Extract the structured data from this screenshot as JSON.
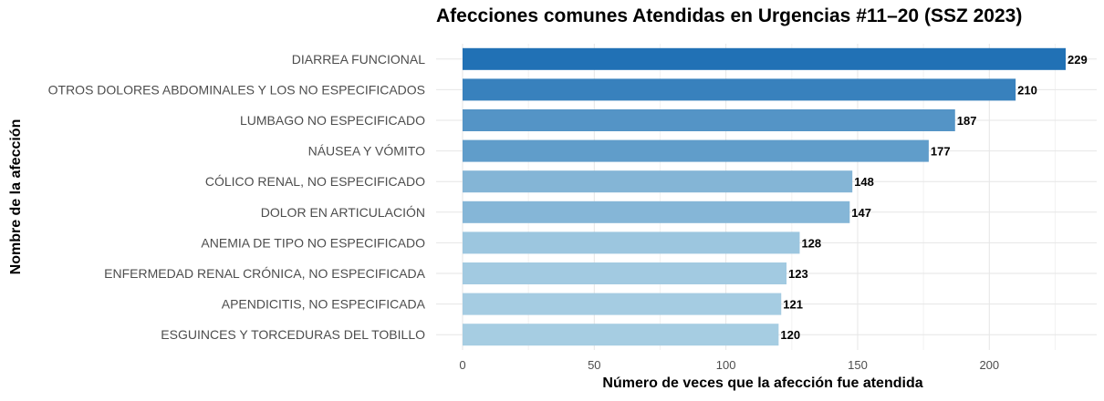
{
  "chart_data": {
    "type": "bar",
    "orientation": "horizontal",
    "title": "Afecciones comunes Atendidas en Urgencias #11–20 (SSZ 2023)",
    "xlabel": "Número de veces que la afección fue atendida",
    "ylabel": "Nombre de la afección",
    "categories": [
      "DIARREA FUNCIONAL",
      "OTROS DOLORES ABDOMINALES Y LOS NO ESPECIFICADOS",
      "LUMBAGO NO ESPECIFICADO",
      "NÁUSEA Y VÓMITO",
      "CÓLICO RENAL, NO ESPECIFICADO",
      "DOLOR EN ARTICULACIÓN",
      "ANEMIA DE TIPO NO ESPECIFICADO",
      "ENFERMEDAD RENAL CRÓNICA, NO ESPECIFICADA",
      "APENDICITIS, NO ESPECIFICADA",
      "ESGUINCES Y TORCEDURAS DEL TOBILLO"
    ],
    "values": [
      229,
      210,
      187,
      177,
      148,
      147,
      128,
      123,
      121,
      120
    ],
    "xlim": [
      0,
      240
    ],
    "xticks": [
      0,
      50,
      100,
      150,
      200
    ],
    "grid": true,
    "colors": {
      "high": "#2171b5",
      "low": "#a6cde2",
      "grid_major": "#e6e6e6",
      "grid_minor": "#f2f2f2"
    }
  }
}
